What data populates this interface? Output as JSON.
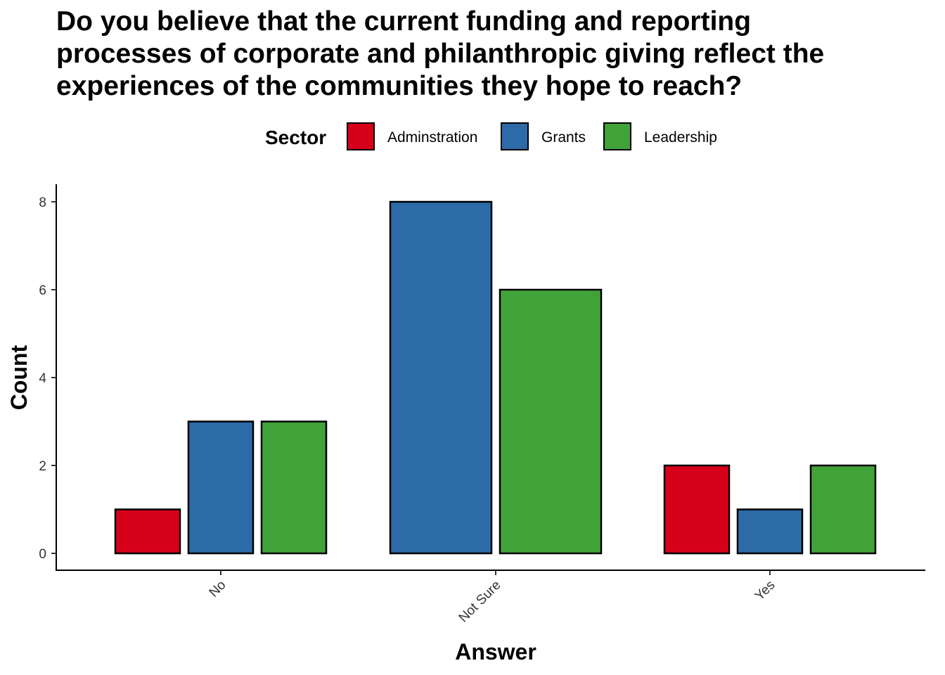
{
  "chart_data": {
    "type": "bar",
    "title": "Do you believe that the current funding and reporting processes of corporate and philanthropic giving reflect the experiences of the communities they hope to reach?",
    "title_lines": [
      "Do you believe that the current funding and reporting",
      "processes of corporate and philanthropic giving reflect the",
      "experiences of the communities they hope to reach?"
    ],
    "xlabel": "Answer",
    "ylabel": "Count",
    "ylim": [
      0,
      8.4
    ],
    "yticks": [
      0,
      2,
      4,
      6,
      8
    ],
    "categories": [
      "No",
      "Not Sure",
      "Yes"
    ],
    "legend": {
      "title": "Sector",
      "position": "top",
      "items": [
        {
          "name": "Adminstration",
          "color": "#D7001A"
        },
        {
          "name": "Grants",
          "color": "#2D6AA8"
        },
        {
          "name": "Leadership",
          "color": "#42A23A"
        }
      ]
    },
    "groups": [
      {
        "category": "No",
        "bars": [
          {
            "series": "Adminstration",
            "value": 1
          },
          {
            "series": "Grants",
            "value": 3
          },
          {
            "series": "Leadership",
            "value": 3
          }
        ]
      },
      {
        "category": "Not Sure",
        "bars": [
          {
            "series": "Grants",
            "value": 8
          },
          {
            "series": "Leadership",
            "value": 6
          }
        ]
      },
      {
        "category": "Yes",
        "bars": [
          {
            "series": "Adminstration",
            "value": 2
          },
          {
            "series": "Grants",
            "value": 1
          },
          {
            "series": "Leadership",
            "value": 2
          }
        ]
      }
    ],
    "grid": false
  }
}
